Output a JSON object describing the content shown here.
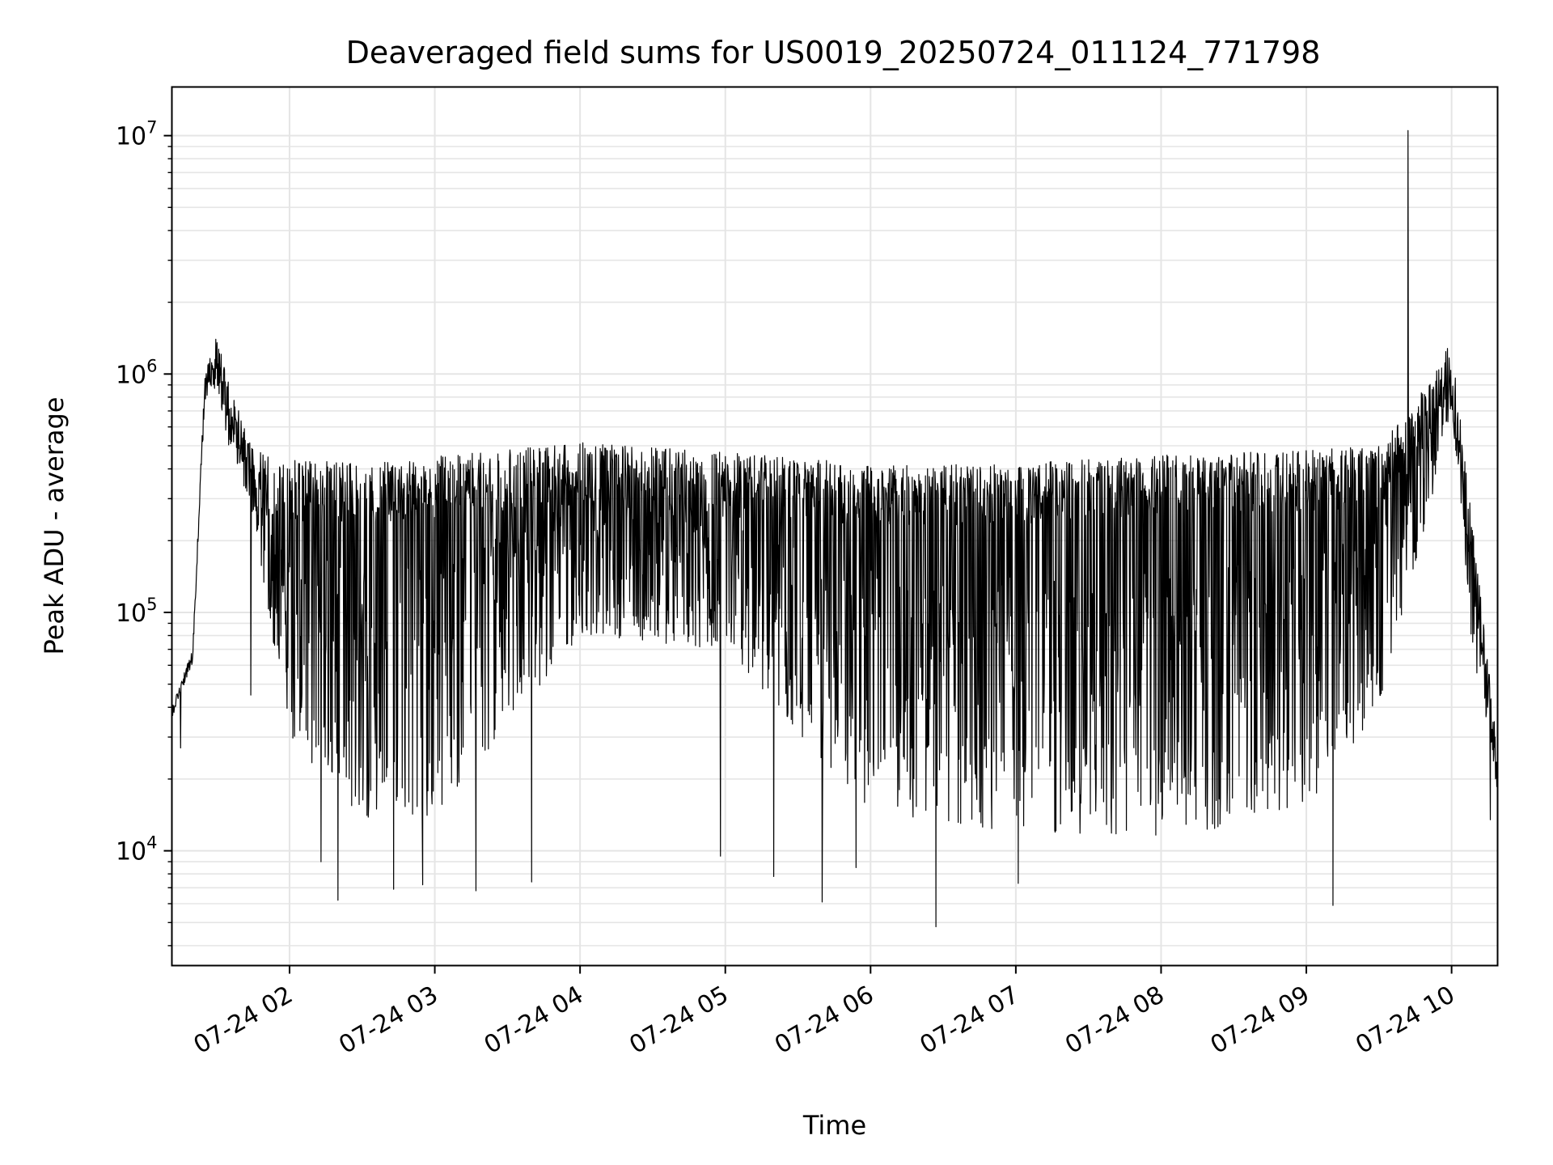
{
  "chart_data": {
    "type": "line",
    "title": "Deaveraged field sums for US0019_20250724_011124_771798",
    "xlabel": "Time",
    "ylabel": "Peak ADU - average",
    "yscale": "log",
    "ylim": [
      3300,
      16000000
    ],
    "xlim": [
      "2025-07-24 01:11:24",
      "2025-07-24 10:19:00"
    ],
    "grid": true,
    "line_color": "#000000",
    "grid_color": "#e5e5e5",
    "x_ticks": [
      {
        "value": "2025-07-24 02:00",
        "label": "07-24 02"
      },
      {
        "value": "2025-07-24 03:00",
        "label": "07-24 03"
      },
      {
        "value": "2025-07-24 04:00",
        "label": "07-24 04"
      },
      {
        "value": "2025-07-24 05:00",
        "label": "07-24 05"
      },
      {
        "value": "2025-07-24 06:00",
        "label": "07-24 06"
      },
      {
        "value": "2025-07-24 07:00",
        "label": "07-24 07"
      },
      {
        "value": "2025-07-24 08:00",
        "label": "07-24 08"
      },
      {
        "value": "2025-07-24 09:00",
        "label": "07-24 09"
      },
      {
        "value": "2025-07-24 10:00",
        "label": "07-24 10"
      }
    ],
    "y_ticks": [
      {
        "value": 10000,
        "base": "10",
        "exp": "4"
      },
      {
        "value": 100000,
        "base": "10",
        "exp": "5"
      },
      {
        "value": 1000000,
        "base": "10",
        "exp": "6"
      },
      {
        "value": 10000000,
        "base": "10",
        "exp": "7"
      }
    ],
    "series": [
      {
        "envelope": {
          "x": [
            "2025-07-24 01:11:24",
            "2025-07-24 01:20",
            "2025-07-24 01:25",
            "2025-07-24 01:30",
            "2025-07-24 01:35",
            "2025-07-24 01:45",
            "2025-07-24 02:00",
            "2025-07-24 02:30",
            "2025-07-24 03:00",
            "2025-07-24 04:00",
            "2025-07-24 05:00",
            "2025-07-24 06:00",
            "2025-07-24 07:00",
            "2025-07-24 08:00",
            "2025-07-24 09:00",
            "2025-07-24 09:30",
            "2025-07-24 09:50",
            "2025-07-24 10:00",
            "2025-07-24 10:10",
            "2025-07-24 10:19"
          ],
          "upper": [
            40000,
            70000,
            1000000,
            1450000,
            900000,
            480000,
            440000,
            420000,
            450000,
            520000,
            470000,
            420000,
            420000,
            460000,
            480000,
            500000,
            900000,
            1400000,
            180000,
            27000
          ],
          "lower": [
            35000,
            60000,
            700000,
            800000,
            400000,
            220000,
            30000,
            13000,
            14000,
            80000,
            70000,
            14000,
            12000,
            11000,
            15000,
            40000,
            250000,
            600000,
            50000,
            15000
          ]
        },
        "spikes": [
          {
            "x": "2025-07-24 01:15",
            "y": 27000
          },
          {
            "x": "2025-07-24 01:44",
            "y": 45000
          },
          {
            "x": "2025-07-24 02:13",
            "y": 9000
          },
          {
            "x": "2025-07-24 02:20",
            "y": 6200
          },
          {
            "x": "2025-07-24 02:43",
            "y": 6900
          },
          {
            "x": "2025-07-24 02:55",
            "y": 7200
          },
          {
            "x": "2025-07-24 03:17",
            "y": 6800
          },
          {
            "x": "2025-07-24 03:40",
            "y": 7400
          },
          {
            "x": "2025-07-24 04:58",
            "y": 9500
          },
          {
            "x": "2025-07-24 05:20",
            "y": 7800
          },
          {
            "x": "2025-07-24 05:40",
            "y": 6100
          },
          {
            "x": "2025-07-24 05:54",
            "y": 8500
          },
          {
            "x": "2025-07-24 06:27",
            "y": 4800
          },
          {
            "x": "2025-07-24 07:01",
            "y": 7300
          },
          {
            "x": "2025-07-24 09:11",
            "y": 6300
          },
          {
            "x": "2025-07-24 09:11",
            "y": 5900
          },
          {
            "x": "2025-07-24 09:42",
            "y": 10500000
          },
          {
            "x": "2025-07-24 10:16",
            "y": 13500
          }
        ]
      }
    ]
  }
}
